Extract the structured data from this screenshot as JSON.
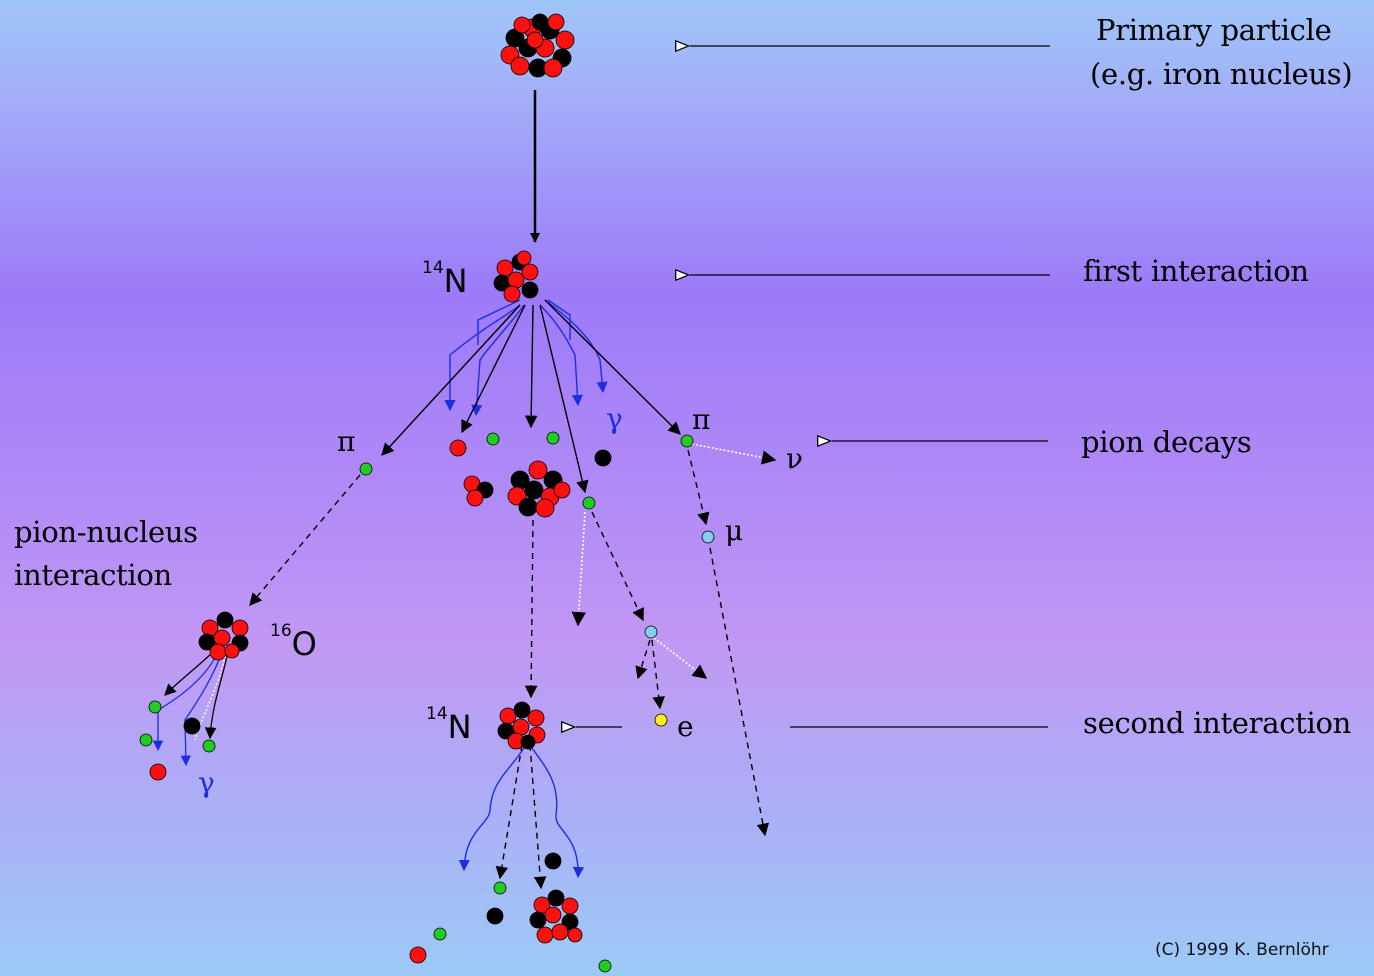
{
  "labels": {
    "primary_line1": "Primary particle",
    "primary_line2": "(e.g. iron nucleus)",
    "first_interaction": "first interaction",
    "pion_decays": "pion decays",
    "pion_nucleus_line1": "pion-nucleus",
    "pion_nucleus_line2": "interaction",
    "second_interaction": "second interaction"
  },
  "nuclei": {
    "n14_top_mass": "14",
    "n14_top_symbol": "N",
    "o16_mass": "16",
    "o16_symbol": "O",
    "n14_bottom_mass": "14",
    "n14_bottom_symbol": "N"
  },
  "particles": {
    "pi_left": "π",
    "pi_right": "π",
    "gamma_mid": "γ",
    "gamma_left": "γ",
    "nu": "ν",
    "mu": "μ",
    "electron": "e"
  },
  "credit": "(C) 1999 K. Bernlöhr",
  "colors": {
    "proton": "#ff1010",
    "neutron": "#000000",
    "pion": "#22cc22",
    "muon": "#88ccee",
    "electron": "#ffee22",
    "gamma": "#1a2fe0"
  }
}
